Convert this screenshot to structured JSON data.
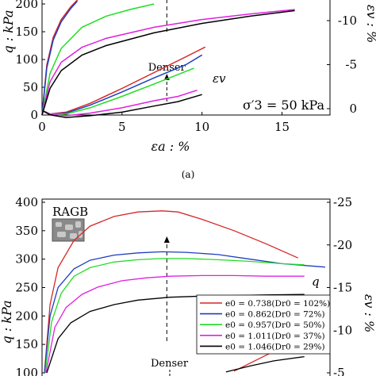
{
  "caption_a": "(a)",
  "chart_data": [
    {
      "id": "a",
      "type": "line",
      "xlabel": "εa : %",
      "ylabel_left": "q : kPa",
      "ylabel_right": "εv : %",
      "xlim": [
        0,
        18
      ],
      "ylim_left": [
        0,
        200
      ],
      "ylim_right": [
        1.5,
        -13.5
      ],
      "x_ticks": [
        0,
        5,
        10,
        15
      ],
      "y_ticks_left": [
        0,
        50,
        100,
        150,
        200
      ],
      "y_ticks_right": [
        0,
        -5,
        -10
      ],
      "annotations": {
        "denser": "Denser",
        "ev_label": "εv",
        "pressure": "σ′3 = 50 kPa"
      },
      "dashed_line_x": 7.8,
      "colors": {
        "red": "#d62728",
        "blue": "#1f3fbf",
        "green": "#22dd22",
        "magenta": "#e020e0",
        "black": "#000000"
      },
      "series": [
        {
          "color": "red",
          "kind": "q",
          "x": [
            0,
            0.3,
            0.7,
            1.2,
            1.8,
            2.3
          ],
          "y": [
            0,
            90,
            140,
            172,
            195,
            210
          ]
        },
        {
          "color": "blue",
          "kind": "q",
          "x": [
            0,
            0.3,
            0.7,
            1.2,
            1.8,
            2.2
          ],
          "y": [
            0,
            85,
            135,
            168,
            192,
            205
          ]
        },
        {
          "color": "green",
          "kind": "q",
          "x": [
            0,
            0.5,
            1.2,
            2.5,
            4,
            5.5,
            7
          ],
          "y": [
            0,
            75,
            120,
            158,
            178,
            190,
            200
          ]
        },
        {
          "color": "magenta",
          "kind": "q",
          "x": [
            0,
            0.5,
            1.2,
            2.5,
            4,
            7,
            10,
            13,
            15.8
          ],
          "y": [
            0,
            60,
            95,
            122,
            138,
            158,
            172,
            182,
            190
          ]
        },
        {
          "color": "black",
          "kind": "q",
          "x": [
            0,
            0.5,
            1.2,
            2.5,
            4,
            7,
            10,
            13,
            15.8
          ],
          "y": [
            0,
            48,
            80,
            108,
            125,
            148,
            165,
            178,
            188
          ]
        },
        {
          "color": "red",
          "kind": "ev",
          "x": [
            0,
            0.5,
            1.5,
            3,
            5,
            7,
            9,
            10.2
          ],
          "y": [
            0.2,
            0.6,
            0.4,
            -0.6,
            -2.3,
            -4.1,
            -5.9,
            -7
          ]
        },
        {
          "color": "blue",
          "kind": "ev",
          "x": [
            0,
            0.5,
            1.5,
            3,
            5,
            7,
            9,
            10
          ],
          "y": [
            0.2,
            0.6,
            0.5,
            -0.4,
            -1.9,
            -3.5,
            -5,
            -6.1
          ]
        },
        {
          "color": "green",
          "kind": "ev",
          "x": [
            0,
            0.5,
            1.5,
            3,
            5,
            7,
            9.5
          ],
          "y": [
            0.2,
            0.6,
            0.6,
            -0.1,
            -1.4,
            -2.8,
            -4.6
          ]
        },
        {
          "color": "magenta",
          "kind": "ev",
          "x": [
            0,
            0.5,
            1.5,
            3,
            5,
            7,
            8.5,
            9.7
          ],
          "y": [
            0.2,
            0.6,
            0.8,
            0.5,
            -0.1,
            -0.9,
            -1.4,
            -2.1
          ]
        },
        {
          "color": "black",
          "kind": "ev",
          "x": [
            0,
            0.5,
            1.5,
            3,
            5,
            7,
            8.5,
            10
          ],
          "y": [
            0.2,
            0.7,
            1,
            0.8,
            0.4,
            -0.3,
            -0.8,
            -1.6
          ]
        }
      ]
    },
    {
      "id": "b",
      "type": "line",
      "ylabel_left": "q : kPa",
      "ylabel_right": "εv : %",
      "ylim_left": [
        100,
        400
      ],
      "ylim_right": [
        -5,
        -25
      ],
      "x_range_hint": [
        0,
        18
      ],
      "y_ticks_left": [
        100,
        150,
        200,
        250,
        300,
        350,
        400
      ],
      "y_ticks_right": [
        -25,
        -20,
        -15,
        -10,
        -5
      ],
      "annotations": {
        "material": "RAGB",
        "q_label": "q",
        "denser": "Denser"
      },
      "dashed_line_x": 7.8,
      "legend": [
        {
          "color": "red",
          "label": "e0 = 0.738(Dr0 = 102%)"
        },
        {
          "color": "blue",
          "label": "e0 = 0.862(Dr0 = 72%)"
        },
        {
          "color": "green",
          "label": "e0 = 0.957(Dr0 = 50%)"
        },
        {
          "color": "magenta",
          "label": "e0 = 1.011(Dr0 = 37%)"
        },
        {
          "color": "black",
          "label": "e0 = 1.046(Dr0 = 29%)"
        }
      ],
      "series": [
        {
          "color": "red",
          "kind": "q",
          "x": [
            0.15,
            0.5,
            1,
            2,
            3,
            4.5,
            6,
            7.5,
            8.5,
            10,
            12,
            14,
            16
          ],
          "y": [
            100,
            220,
            285,
            333,
            358,
            375,
            383,
            385,
            383,
            370,
            350,
            327,
            302
          ]
        },
        {
          "color": "blue",
          "kind": "q",
          "x": [
            0.15,
            0.5,
            1,
            2,
            3,
            4.5,
            6,
            7.5,
            9,
            11,
            13,
            15,
            17.7
          ],
          "y": [
            100,
            200,
            250,
            283,
            298,
            307,
            311,
            313,
            312,
            308,
            300,
            292,
            286
          ]
        },
        {
          "color": "green",
          "kind": "q",
          "x": [
            0.2,
            0.6,
            1.2,
            2,
            3,
            4.5,
            6,
            7.5,
            9,
            11,
            13,
            15,
            16.4
          ],
          "y": [
            100,
            190,
            240,
            270,
            285,
            295,
            299,
            301,
            301,
            299,
            296,
            292,
            290
          ]
        },
        {
          "color": "magenta",
          "kind": "q",
          "x": [
            0.25,
            0.8,
            1.5,
            2.5,
            3.5,
            5,
            6.5,
            8,
            10,
            12,
            14,
            16.4
          ],
          "y": [
            100,
            180,
            215,
            238,
            251,
            262,
            267,
            270,
            271,
            271,
            270,
            270
          ]
        },
        {
          "color": "black",
          "kind": "q",
          "x": [
            0.3,
            1,
            1.8,
            3,
            4.5,
            6,
            8,
            10,
            12,
            14,
            16.4
          ],
          "y": [
            100,
            160,
            188,
            208,
            220,
            228,
            233,
            235,
            236,
            237,
            238
          ]
        },
        {
          "color": "red",
          "kind": "ev",
          "x": [
            12,
            13.5,
            15
          ],
          "y": [
            -5.2,
            -6.6,
            -8
          ]
        },
        {
          "color": "black",
          "kind": "ev",
          "x": [
            11.5,
            13,
            14.5,
            16.4
          ],
          "y": [
            -5.1,
            -5.8,
            -6.4,
            -6.9
          ]
        }
      ]
    }
  ]
}
